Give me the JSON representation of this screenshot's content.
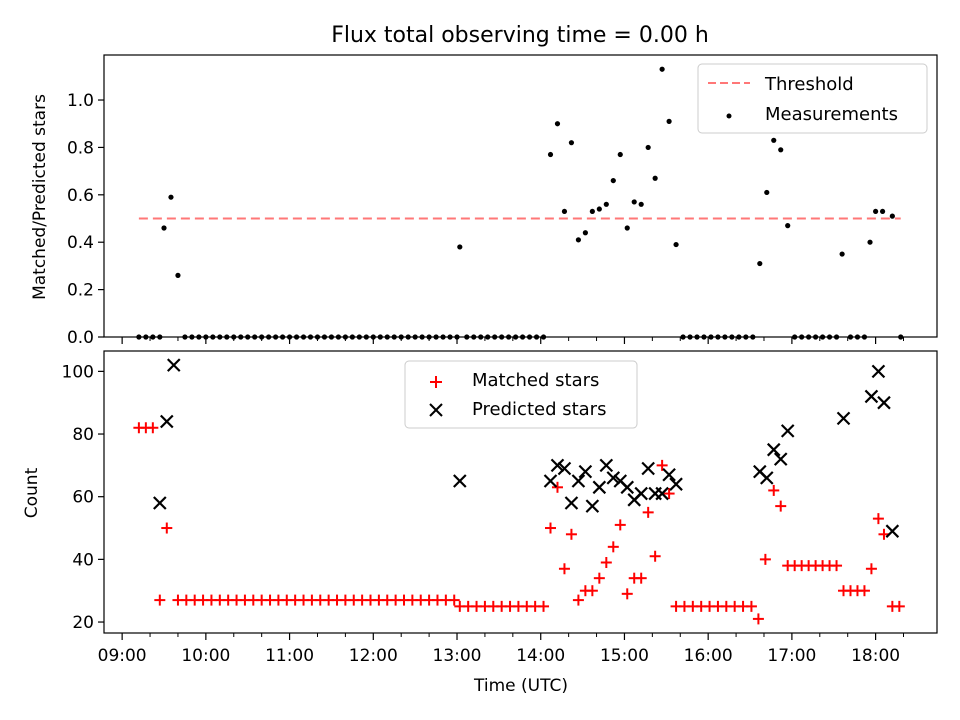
{
  "chart_data": [
    {
      "type": "scatter",
      "title": "Flux total observing time = 0.00 h",
      "ylabel": "Matched/Predicted stars",
      "xlabel": "",
      "ylim": [
        0,
        1.19
      ],
      "yticks": [
        "0.0",
        "0.2",
        "0.4",
        "0.6",
        "0.8",
        "1.0"
      ],
      "legend_position": "top-right",
      "grid": false,
      "series": [
        {
          "name": "Threshold",
          "style": "dashed-line",
          "color": "#ff7777",
          "points": [
            [
              "09:12",
              0.5
            ],
            [
              "18:18",
              0.5
            ]
          ]
        },
        {
          "name": "Measurements",
          "style": "dot",
          "color": "#000000",
          "points": [
            [
              "09:12",
              0
            ],
            [
              "09:17",
              0
            ],
            [
              "09:22",
              0
            ],
            [
              "09:27",
              0
            ],
            [
              "09:30",
              0.46
            ],
            [
              "09:35",
              0.59
            ],
            [
              "09:40",
              0.26
            ],
            [
              "09:45",
              0
            ],
            [
              "09:50",
              0
            ],
            [
              "09:55",
              0
            ],
            [
              "10:00",
              0
            ],
            [
              "10:05",
              0
            ],
            [
              "10:10",
              0
            ],
            [
              "10:15",
              0
            ],
            [
              "10:20",
              0
            ],
            [
              "10:25",
              0
            ],
            [
              "10:30",
              0
            ],
            [
              "10:35",
              0
            ],
            [
              "10:40",
              0
            ],
            [
              "10:45",
              0
            ],
            [
              "10:50",
              0
            ],
            [
              "10:55",
              0
            ],
            [
              "11:00",
              0
            ],
            [
              "11:05",
              0
            ],
            [
              "11:10",
              0
            ],
            [
              "11:15",
              0
            ],
            [
              "11:20",
              0
            ],
            [
              "11:25",
              0
            ],
            [
              "11:30",
              0
            ],
            [
              "11:35",
              0
            ],
            [
              "11:40",
              0
            ],
            [
              "11:45",
              0
            ],
            [
              "11:50",
              0
            ],
            [
              "11:55",
              0
            ],
            [
              "12:00",
              0
            ],
            [
              "12:05",
              0
            ],
            [
              "12:10",
              0
            ],
            [
              "12:15",
              0
            ],
            [
              "12:20",
              0
            ],
            [
              "12:25",
              0
            ],
            [
              "12:30",
              0
            ],
            [
              "12:35",
              0
            ],
            [
              "12:40",
              0
            ],
            [
              "12:45",
              0
            ],
            [
              "12:50",
              0
            ],
            [
              "12:55",
              0
            ],
            [
              "13:00",
              0
            ],
            [
              "13:02",
              0.38
            ],
            [
              "13:07",
              0
            ],
            [
              "13:12",
              0
            ],
            [
              "13:17",
              0
            ],
            [
              "13:22",
              0
            ],
            [
              "13:27",
              0
            ],
            [
              "13:32",
              0
            ],
            [
              "13:37",
              0
            ],
            [
              "13:42",
              0
            ],
            [
              "13:47",
              0
            ],
            [
              "13:52",
              0
            ],
            [
              "13:57",
              0
            ],
            [
              "14:02",
              0
            ],
            [
              "14:07",
              0.77
            ],
            [
              "14:12",
              0.9
            ],
            [
              "14:17",
              0.53
            ],
            [
              "14:22",
              0.82
            ],
            [
              "14:27",
              0.41
            ],
            [
              "14:32",
              0.44
            ],
            [
              "14:37",
              0.53
            ],
            [
              "14:42",
              0.54
            ],
            [
              "14:47",
              0.56
            ],
            [
              "14:52",
              0.66
            ],
            [
              "14:57",
              0.77
            ],
            [
              "15:02",
              0.46
            ],
            [
              "15:07",
              0.57
            ],
            [
              "15:12",
              0.56
            ],
            [
              "15:17",
              0.8
            ],
            [
              "15:22",
              0.67
            ],
            [
              "15:27",
              1.13
            ],
            [
              "15:32",
              0.91
            ],
            [
              "15:37",
              0.39
            ],
            [
              "15:42",
              0
            ],
            [
              "15:47",
              0
            ],
            [
              "15:52",
              0
            ],
            [
              "15:57",
              0
            ],
            [
              "16:02",
              0
            ],
            [
              "16:07",
              0
            ],
            [
              "16:12",
              0
            ],
            [
              "16:17",
              0
            ],
            [
              "16:22",
              0
            ],
            [
              "16:27",
              0
            ],
            [
              "16:32",
              0
            ],
            [
              "16:37",
              0.31
            ],
            [
              "16:42",
              0.61
            ],
            [
              "16:47",
              0.83
            ],
            [
              "16:52",
              0.79
            ],
            [
              "16:57",
              0.47
            ],
            [
              "17:02",
              0
            ],
            [
              "17:07",
              0
            ],
            [
              "17:12",
              0
            ],
            [
              "17:17",
              0
            ],
            [
              "17:22",
              0
            ],
            [
              "17:27",
              0
            ],
            [
              "17:32",
              0
            ],
            [
              "17:36",
              0.35
            ],
            [
              "17:42",
              0
            ],
            [
              "17:47",
              0
            ],
            [
              "17:52",
              0
            ],
            [
              "17:56",
              0.4
            ],
            [
              "18:00",
              0.53
            ],
            [
              "18:05",
              0.53
            ],
            [
              "18:12",
              0.51
            ],
            [
              "18:18",
              0
            ]
          ]
        }
      ]
    },
    {
      "type": "scatter",
      "title": "",
      "ylabel": "Count",
      "xlabel": "Time (UTC)",
      "ylim": [
        16.5,
        106.5
      ],
      "yticks": [
        "20",
        "40",
        "60",
        "80",
        "100"
      ],
      "xticks": [
        "09:00",
        "10:00",
        "11:00",
        "12:00",
        "13:00",
        "14:00",
        "15:00",
        "16:00",
        "17:00",
        "18:00"
      ],
      "xlim": [
        "08:47",
        "18:44"
      ],
      "legend_position": "top-center",
      "grid": false,
      "series": [
        {
          "name": "Matched stars",
          "marker": "plus",
          "color": "#ff0000",
          "points": [
            [
              "09:12",
              82
            ],
            [
              "09:17",
              82
            ],
            [
              "09:22",
              82
            ],
            [
              "09:27",
              27
            ],
            [
              "09:32",
              50
            ],
            [
              "09:40",
              27
            ],
            [
              "09:46",
              27
            ],
            [
              "09:52",
              27
            ],
            [
              "09:58",
              27
            ],
            [
              "10:04",
              27
            ],
            [
              "10:10",
              27
            ],
            [
              "10:16",
              27
            ],
            [
              "10:22",
              27
            ],
            [
              "10:28",
              27
            ],
            [
              "10:34",
              27
            ],
            [
              "10:40",
              27
            ],
            [
              "10:46",
              27
            ],
            [
              "10:52",
              27
            ],
            [
              "10:58",
              27
            ],
            [
              "11:04",
              27
            ],
            [
              "11:10",
              27
            ],
            [
              "11:16",
              27
            ],
            [
              "11:22",
              27
            ],
            [
              "11:28",
              27
            ],
            [
              "11:34",
              27
            ],
            [
              "11:40",
              27
            ],
            [
              "11:46",
              27
            ],
            [
              "11:52",
              27
            ],
            [
              "11:58",
              27
            ],
            [
              "12:04",
              27
            ],
            [
              "12:10",
              27
            ],
            [
              "12:16",
              27
            ],
            [
              "12:22",
              27
            ],
            [
              "12:28",
              27
            ],
            [
              "12:34",
              27
            ],
            [
              "12:40",
              27
            ],
            [
              "12:46",
              27
            ],
            [
              "12:52",
              27
            ],
            [
              "12:58",
              27
            ],
            [
              "13:02",
              25
            ],
            [
              "13:08",
              25
            ],
            [
              "13:14",
              25
            ],
            [
              "13:20",
              25
            ],
            [
              "13:26",
              25
            ],
            [
              "13:32",
              25
            ],
            [
              "13:38",
              25
            ],
            [
              "13:44",
              25
            ],
            [
              "13:50",
              25
            ],
            [
              "13:56",
              25
            ],
            [
              "14:02",
              25
            ],
            [
              "14:07",
              50
            ],
            [
              "14:12",
              63
            ],
            [
              "14:17",
              37
            ],
            [
              "14:22",
              48
            ],
            [
              "14:27",
              27
            ],
            [
              "14:32",
              30
            ],
            [
              "14:37",
              30
            ],
            [
              "14:42",
              34
            ],
            [
              "14:47",
              39
            ],
            [
              "14:52",
              44
            ],
            [
              "14:57",
              51
            ],
            [
              "15:02",
              29
            ],
            [
              "15:07",
              34
            ],
            [
              "15:12",
              34
            ],
            [
              "15:17",
              55
            ],
            [
              "15:22",
              41
            ],
            [
              "15:27",
              70
            ],
            [
              "15:32",
              61
            ],
            [
              "15:37",
              25
            ],
            [
              "15:43",
              25
            ],
            [
              "15:49",
              25
            ],
            [
              "15:55",
              25
            ],
            [
              "16:01",
              25
            ],
            [
              "16:07",
              25
            ],
            [
              "16:13",
              25
            ],
            [
              "16:19",
              25
            ],
            [
              "16:25",
              25
            ],
            [
              "16:31",
              25
            ],
            [
              "16:36",
              21
            ],
            [
              "16:41",
              40
            ],
            [
              "16:47",
              62
            ],
            [
              "16:52",
              57
            ],
            [
              "16:57",
              38
            ],
            [
              "17:02",
              38
            ],
            [
              "17:07",
              38
            ],
            [
              "17:12",
              38
            ],
            [
              "17:17",
              38
            ],
            [
              "17:22",
              38
            ],
            [
              "17:27",
              38
            ],
            [
              "17:32",
              38
            ],
            [
              "17:37",
              30
            ],
            [
              "17:42",
              30
            ],
            [
              "17:47",
              30
            ],
            [
              "17:52",
              30
            ],
            [
              "17:57",
              37
            ],
            [
              "18:02",
              53
            ],
            [
              "18:06",
              48
            ],
            [
              "18:12",
              25
            ],
            [
              "18:17",
              25
            ]
          ]
        },
        {
          "name": "Predicted stars",
          "marker": "x",
          "color": "#000000",
          "points": [
            [
              "09:27",
              58
            ],
            [
              "09:32",
              84
            ],
            [
              "09:37",
              102
            ],
            [
              "13:02",
              65
            ],
            [
              "14:07",
              65
            ],
            [
              "14:12",
              70
            ],
            [
              "14:17",
              69
            ],
            [
              "14:22",
              58
            ],
            [
              "14:27",
              65
            ],
            [
              "14:32",
              68
            ],
            [
              "14:37",
              57
            ],
            [
              "14:42",
              63
            ],
            [
              "14:47",
              70
            ],
            [
              "14:52",
              66
            ],
            [
              "14:57",
              65
            ],
            [
              "15:02",
              63
            ],
            [
              "15:07",
              59
            ],
            [
              "15:12",
              61
            ],
            [
              "15:17",
              69
            ],
            [
              "15:22",
              61
            ],
            [
              "15:27",
              61
            ],
            [
              "15:32",
              67
            ],
            [
              "15:37",
              64
            ],
            [
              "16:37",
              68
            ],
            [
              "16:42",
              66
            ],
            [
              "16:47",
              75
            ],
            [
              "16:52",
              72
            ],
            [
              "16:57",
              81
            ],
            [
              "17:37",
              85
            ],
            [
              "17:57",
              92
            ],
            [
              "18:02",
              100
            ],
            [
              "18:06",
              90
            ],
            [
              "18:12",
              49
            ]
          ]
        }
      ]
    }
  ]
}
